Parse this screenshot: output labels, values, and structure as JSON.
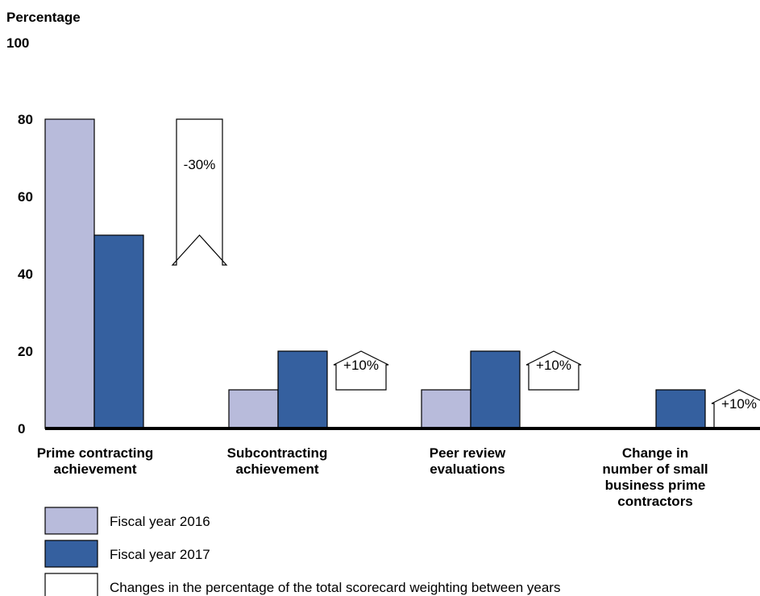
{
  "chart_data": {
    "type": "bar",
    "ylabel": "Percentage",
    "ylim": [
      0,
      100
    ],
    "yticks": [
      0,
      20,
      40,
      60,
      80,
      100
    ],
    "categories": [
      "Prime contracting achievement",
      "Subcontracting achievement",
      "Peer review evaluations",
      "Change in number of small business prime contractors"
    ],
    "category_lines": [
      [
        "Prime contracting",
        "achievement"
      ],
      [
        "Subcontracting",
        "achievement"
      ],
      [
        "Peer review",
        "evaluations"
      ],
      [
        "Change in",
        "number of small",
        "business prime",
        "contractors"
      ]
    ],
    "series": [
      {
        "name": "Fiscal year 2016",
        "color": "#b8bbdb",
        "values": [
          80,
          10,
          10,
          null
        ]
      },
      {
        "name": "Fiscal year 2017",
        "color": "#35609f",
        "values": [
          50,
          20,
          20,
          10
        ]
      }
    ],
    "changes": [
      {
        "label": "-30%",
        "direction": "down",
        "from": 80,
        "to": 50
      },
      {
        "label": "+10%",
        "direction": "up",
        "from": 10,
        "to": 20
      },
      {
        "label": "+10%",
        "direction": "up",
        "from": 10,
        "to": 20
      },
      {
        "label": "+10%",
        "direction": "up",
        "from": 0,
        "to": 10
      }
    ],
    "legend": [
      {
        "label": "Fiscal year 2016",
        "color": "#b8bbdb"
      },
      {
        "label": "Fiscal year 2017",
        "color": "#35609f"
      },
      {
        "label": "Changes in the percentage of the total scorecard weighting between years",
        "color": "#ffffff"
      }
    ]
  }
}
